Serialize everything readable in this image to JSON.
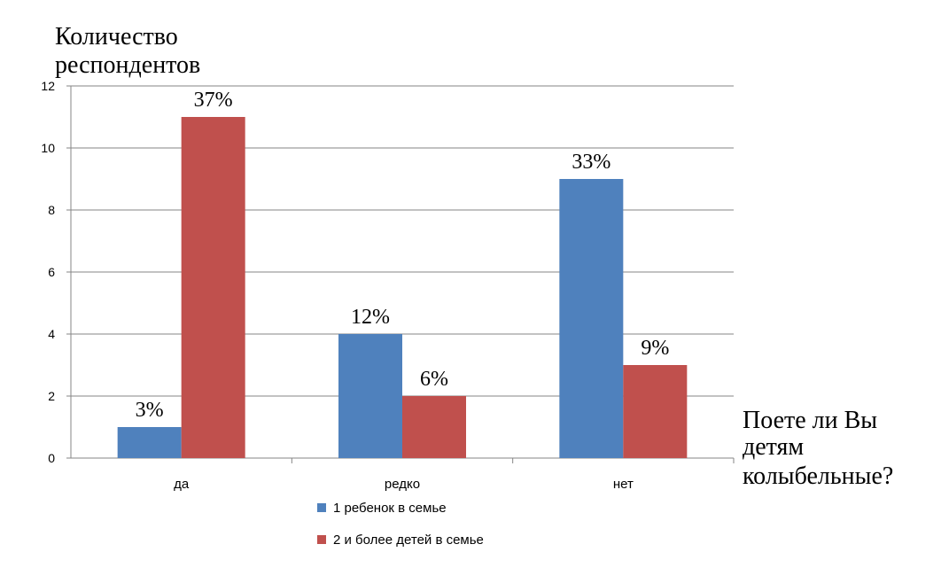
{
  "chart_data": {
    "type": "bar",
    "ylabel_lines": [
      "Количество",
      "респондентов"
    ],
    "xlabel_lines": [
      "Поете ли Вы",
      "детям",
      "колыбельные?"
    ],
    "categories": [
      "да",
      "редко",
      "нет"
    ],
    "ylim": [
      0,
      12
    ],
    "yticks": [
      0,
      2,
      4,
      6,
      8,
      10,
      12
    ],
    "grid": true,
    "legend_position": "bottom",
    "series": [
      {
        "name": "1 ребенок в семье",
        "color": "#4f81bd",
        "values": [
          1,
          4,
          9
        ],
        "data_labels": [
          "3%",
          "12%",
          "33%"
        ]
      },
      {
        "name": "2 и более детей в семье",
        "color": "#c0504d",
        "values": [
          11,
          2,
          3
        ],
        "data_labels": [
          "37%",
          "6%",
          "9%"
        ]
      }
    ]
  }
}
